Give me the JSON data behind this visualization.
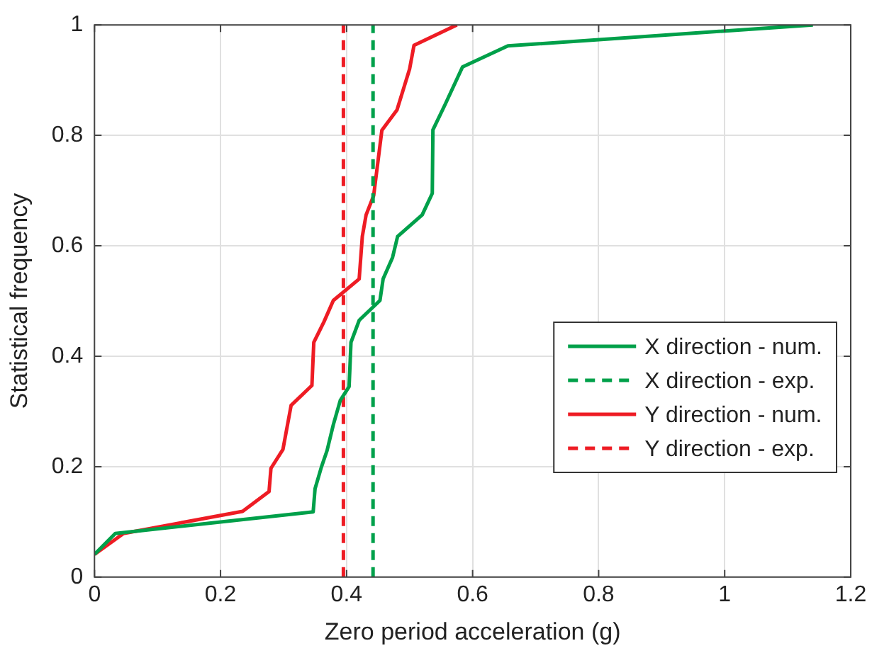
{
  "chart_data": {
    "type": "line",
    "xlabel": "Zero period acceleration (g)",
    "ylabel": "Statistical frequency",
    "xlim": [
      0,
      1.2
    ],
    "xticks": [
      0,
      0.2,
      0.4,
      0.6,
      0.8,
      1,
      1.2
    ],
    "ylim": [
      0,
      1
    ],
    "yticks": [
      0,
      0.2,
      0.4,
      0.6,
      0.8,
      1
    ],
    "grid": true,
    "legend": "right",
    "marker": "none",
    "series": [
      {
        "name": "X direction - num.",
        "color": "#00a04a",
        "line_style": "solid",
        "x": [
          0,
          0.033,
          0.347,
          0.35,
          0.36,
          0.369,
          0.379,
          0.39,
          0.404,
          0.407,
          0.42,
          0.453,
          0.458,
          0.473,
          0.481,
          0.52,
          0.536,
          0.537,
          0.556,
          0.584,
          0.656,
          1.14
        ],
        "values": [
          0.041,
          0.079,
          0.118,
          0.16,
          0.199,
          0.229,
          0.276,
          0.32,
          0.345,
          0.425,
          0.465,
          0.501,
          0.54,
          0.579,
          0.617,
          0.656,
          0.695,
          0.81,
          0.855,
          0.924,
          0.962,
          1.0
        ]
      },
      {
        "name": "X direction - exp.",
        "color": "#00a04a",
        "line_style": "dashed",
        "x": [
          0.442,
          0.442
        ],
        "values": [
          0,
          1
        ]
      },
      {
        "name": "Y direction - num.",
        "color": "#ee1c24",
        "line_style": "solid",
        "x": [
          0,
          0.046,
          0.235,
          0.277,
          0.28,
          0.299,
          0.312,
          0.345,
          0.348,
          0.364,
          0.379,
          0.42,
          0.425,
          0.431,
          0.443,
          0.456,
          0.48,
          0.5,
          0.507,
          0.575
        ],
        "values": [
          0.041,
          0.079,
          0.119,
          0.155,
          0.197,
          0.231,
          0.311,
          0.347,
          0.425,
          0.462,
          0.501,
          0.54,
          0.617,
          0.656,
          0.691,
          0.809,
          0.846,
          0.92,
          0.963,
          1.0
        ]
      },
      {
        "name": "Y direction - exp.",
        "color": "#ee1c24",
        "line_style": "dashed",
        "x": [
          0.395,
          0.395
        ],
        "values": [
          0,
          1
        ]
      }
    ]
  }
}
